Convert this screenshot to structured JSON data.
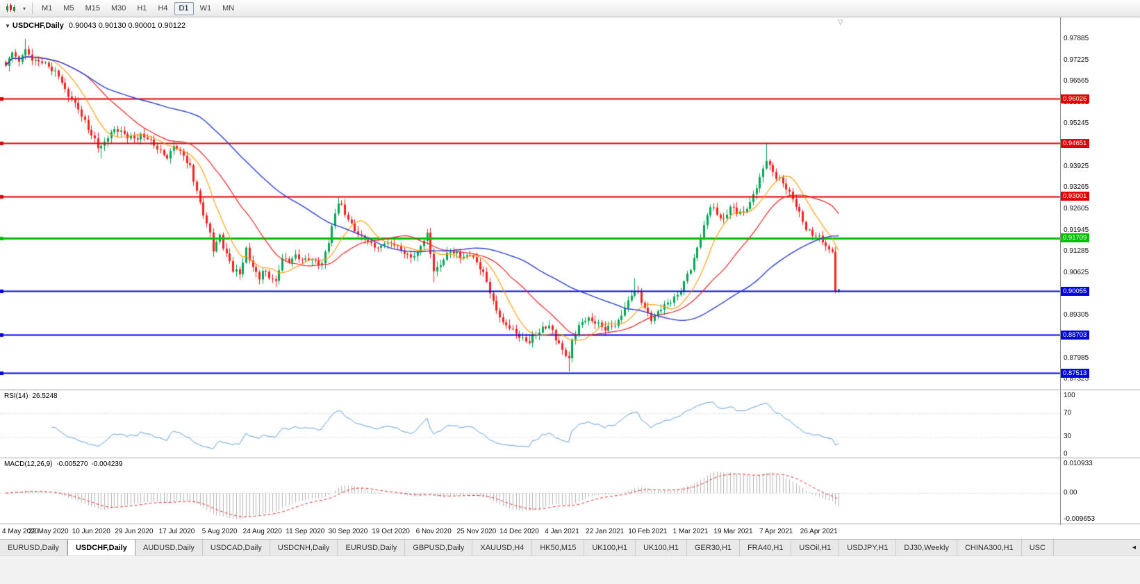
{
  "icons": {
    "chart_menu": "▼",
    "chart_shift": "▽",
    "toolbar_caret": "▾",
    "tab_scroll_left": "◂"
  },
  "toolbar": {
    "timeframes": [
      "M1",
      "M5",
      "M15",
      "M30",
      "H1",
      "H4",
      "D1",
      "W1",
      "MN"
    ],
    "selected": "D1"
  },
  "header": {
    "symbol": "USDCHF,Daily",
    "ohlc": "0.90043 0.90130 0.90001 0.90122"
  },
  "colors": {
    "bull": "#00a651",
    "bull_border": "#00823d",
    "bear": "#ff1f1f",
    "bear_border": "#c00000",
    "ma_fast": "#ff9900",
    "ma_mid": "#ee2222",
    "ma_slow": "#2b3fd4",
    "hline_red": "#e00000",
    "hline_green": "#00c000",
    "hline_blue": "#0000e0",
    "grid_dotted": "#c8c8c8",
    "axis_text": "#101010"
  },
  "chart_data": {
    "type": "candlestick",
    "symbol": "USDCHF",
    "timeframe": "Daily",
    "n_candles": 254,
    "x_label_step": 13,
    "x_labels": [
      "4 May 2020",
      "22 May 2020",
      "10 Jun 2020",
      "29 Jun 2020",
      "17 Jul 2020",
      "5 Aug 2020",
      "24 Aug 2020",
      "11 Sep 2020",
      "30 Sep 2020",
      "19 Oct 2020",
      "6 Nov 2020",
      "25 Nov 2020",
      "14 Dec 2020",
      "4 Jan 2021",
      "22 Jan 2021",
      "10 Feb 2021",
      "1 Mar 2021",
      "19 Mar 2021",
      "7 Apr 2021",
      "26 Apr 2021"
    ],
    "price_axis": {
      "min": 0.872,
      "max": 0.984,
      "ticks": [
        "0.97885",
        "0.97225",
        "0.96565",
        "0.95905",
        "0.95245",
        "0.94585",
        "0.93925",
        "0.93265",
        "0.92605",
        "0.91945",
        "0.91285",
        "0.90625",
        "0.89965",
        "0.89305",
        "0.88645",
        "0.87985",
        "0.87325"
      ]
    },
    "close_anchors": [
      [
        0,
        0.97
      ],
      [
        1,
        0.9722
      ],
      [
        2,
        0.9745
      ],
      [
        3,
        0.973
      ],
      [
        4,
        0.9718
      ],
      [
        5,
        0.9745
      ],
      [
        6,
        0.976
      ],
      [
        7,
        0.974
      ],
      [
        8,
        0.9725
      ],
      [
        10,
        0.9718
      ],
      [
        12,
        0.9705
      ],
      [
        13,
        0.97
      ],
      [
        15,
        0.9685
      ],
      [
        17,
        0.9658
      ],
      [
        19,
        0.9615
      ],
      [
        21,
        0.959
      ],
      [
        24,
        0.953
      ],
      [
        26,
        0.949
      ],
      [
        28,
        0.9455
      ],
      [
        30,
        0.9472
      ],
      [
        32,
        0.95
      ],
      [
        34,
        0.9505
      ],
      [
        37,
        0.9485
      ],
      [
        39,
        0.9478
      ],
      [
        41,
        0.9492
      ],
      [
        43,
        0.9487
      ],
      [
        45,
        0.9455
      ],
      [
        47,
        0.9438
      ],
      [
        49,
        0.9418
      ],
      [
        51,
        0.9458
      ],
      [
        52,
        0.9448
      ],
      [
        54,
        0.943
      ],
      [
        56,
        0.939
      ],
      [
        58,
        0.931
      ],
      [
        60,
        0.9245
      ],
      [
        62,
        0.9185
      ],
      [
        63,
        0.9135
      ],
      [
        65,
        0.918
      ],
      [
        67,
        0.912
      ],
      [
        69,
        0.9072
      ],
      [
        71,
        0.9058
      ],
      [
        73,
        0.913
      ],
      [
        75,
        0.908
      ],
      [
        77,
        0.9045
      ],
      [
        78,
        0.9075
      ],
      [
        80,
        0.9052
      ],
      [
        82,
        0.9032
      ],
      [
        84,
        0.9105
      ],
      [
        86,
        0.9095
      ],
      [
        88,
        0.9115
      ],
      [
        90,
        0.9105
      ],
      [
        92,
        0.911
      ],
      [
        94,
        0.9095
      ],
      [
        96,
        0.9082
      ],
      [
        98,
        0.9162
      ],
      [
        100,
        0.9248
      ],
      [
        101,
        0.9288
      ],
      [
        103,
        0.925
      ],
      [
        105,
        0.9208
      ],
      [
        107,
        0.918
      ],
      [
        109,
        0.9165
      ],
      [
        111,
        0.9155
      ],
      [
        113,
        0.914
      ],
      [
        115,
        0.9158
      ],
      [
        117,
        0.9152
      ],
      [
        119,
        0.914
      ],
      [
        121,
        0.9122
      ],
      [
        123,
        0.9108
      ],
      [
        125,
        0.913
      ],
      [
        127,
        0.9168
      ],
      [
        128,
        0.9185
      ],
      [
        130,
        0.9065
      ],
      [
        131,
        0.907
      ],
      [
        133,
        0.9105
      ],
      [
        135,
        0.9138
      ],
      [
        137,
        0.9122
      ],
      [
        139,
        0.911
      ],
      [
        141,
        0.9122
      ],
      [
        143,
        0.909
      ],
      [
        145,
        0.9062
      ],
      [
        147,
        0.9005
      ],
      [
        149,
        0.895
      ],
      [
        151,
        0.8908
      ],
      [
        153,
        0.889
      ],
      [
        155,
        0.887
      ],
      [
        157,
        0.8858
      ],
      [
        159,
        0.8852
      ],
      [
        161,
        0.888
      ],
      [
        163,
        0.889
      ],
      [
        165,
        0.89
      ],
      [
        167,
        0.8858
      ],
      [
        169,
        0.8822
      ],
      [
        171,
        0.88
      ],
      [
        172,
        0.8855
      ],
      [
        174,
        0.8898
      ],
      [
        176,
        0.892
      ],
      [
        178,
        0.8908
      ],
      [
        180,
        0.8898
      ],
      [
        182,
        0.8892
      ],
      [
        184,
        0.89
      ],
      [
        186,
        0.8915
      ],
      [
        188,
        0.895
      ],
      [
        190,
        0.8988
      ],
      [
        191,
        0.9
      ],
      [
        192,
        0.8995
      ],
      [
        194,
        0.896
      ],
      [
        196,
        0.8922
      ],
      [
        198,
        0.894
      ],
      [
        200,
        0.8958
      ],
      [
        202,
        0.8968
      ],
      [
        204,
        0.899
      ],
      [
        206,
        0.9035
      ],
      [
        207,
        0.906
      ],
      [
        208,
        0.9078
      ],
      [
        210,
        0.914
      ],
      [
        212,
        0.9205
      ],
      [
        214,
        0.9268
      ],
      [
        216,
        0.9248
      ],
      [
        218,
        0.9228
      ],
      [
        220,
        0.9268
      ],
      [
        222,
        0.9252
      ],
      [
        224,
        0.9248
      ],
      [
        226,
        0.928
      ],
      [
        228,
        0.933
      ],
      [
        230,
        0.9386
      ],
      [
        231,
        0.9416
      ],
      [
        233,
        0.9375
      ],
      [
        235,
        0.9352
      ],
      [
        237,
        0.9322
      ],
      [
        239,
        0.929
      ],
      [
        241,
        0.925
      ],
      [
        243,
        0.9205
      ],
      [
        245,
        0.9186
      ],
      [
        247,
        0.9172
      ],
      [
        249,
        0.9142
      ],
      [
        251,
        0.9128
      ],
      [
        252,
        0.9006
      ],
      [
        253,
        0.90122
      ]
    ],
    "wick_overrides": {
      "6": {
        "high": 0.97885
      },
      "29": {
        "low": 0.9418
      },
      "71": {
        "low": 0.9042
      },
      "77": {
        "low": 0.9027
      },
      "82": {
        "low": 0.902
      },
      "101": {
        "high": 0.92965
      },
      "130": {
        "low": 0.9033
      },
      "171": {
        "low": 0.87565
      },
      "191": {
        "high": 0.9046
      },
      "231": {
        "high": 0.94651
      },
      "252": {
        "low": 0.89995
      }
    },
    "last_candle": {
      "open": 0.90043,
      "high": 0.9013,
      "low": 0.90001,
      "close": 0.90122
    },
    "moving_averages": [
      {
        "name": "fast",
        "period": 10,
        "color": "#ff9900",
        "width": 1.1
      },
      {
        "name": "medium",
        "period": 25,
        "color": "#ee2222",
        "width": 1.2
      },
      {
        "name": "slow",
        "period": 60,
        "color": "#2b3fd4",
        "width": 1.4
      }
    ],
    "hlines": [
      {
        "price": 0.96026,
        "label": "0.96026",
        "color": "#e00000",
        "width": 2
      },
      {
        "price": 0.94651,
        "label": "0.94651",
        "color": "#e00000",
        "width": 2
      },
      {
        "price": 0.93001,
        "label": "0.93001",
        "color": "#e00000",
        "width": 2
      },
      {
        "price": 0.91709,
        "label": "0.91709",
        "color": "#00c000",
        "width": 3
      },
      {
        "price": 0.90055,
        "label": "0.90055",
        "color": "#0000e0",
        "width": 2
      },
      {
        "price": 0.88703,
        "label": "0.88703",
        "color": "#0000e0",
        "width": 2
      },
      {
        "price": 0.87513,
        "label": "0.87513",
        "color": "#0000e0",
        "width": 2
      }
    ],
    "rsi": {
      "label": "RSI(14)",
      "value": "26.5248",
      "period": 14,
      "axis_labels": [
        "100",
        "70",
        "30",
        "0"
      ],
      "dotted_levels": [
        70,
        30
      ],
      "color": "#5f9fd8"
    },
    "macd": {
      "label": "MACD(12,26,9)",
      "value_main": "-0.005270",
      "value_signal": "-0.004239",
      "axis_labels": [
        "0.010933",
        "0.00",
        "-0.009653"
      ],
      "hist_color": "#b4b4b4",
      "signal_color": "#e03030"
    }
  },
  "tabs": {
    "items": [
      "EURUSD,Daily",
      "USDCHF,Daily",
      "AUDUSD,Daily",
      "USDCAD,Daily",
      "USDCNH,Daily",
      "EURUSD,Daily",
      "GBPUSD,Daily",
      "XAUUSD,H4",
      "HK50,M15",
      "UK100,H1",
      "UK100,H1",
      "GER30,H1",
      "FRA40,H1",
      "USOil,H1",
      "USDJPY,H1",
      "DJ30,Weekly",
      "CHINA300,H1",
      "USC"
    ],
    "active_index": 1
  }
}
